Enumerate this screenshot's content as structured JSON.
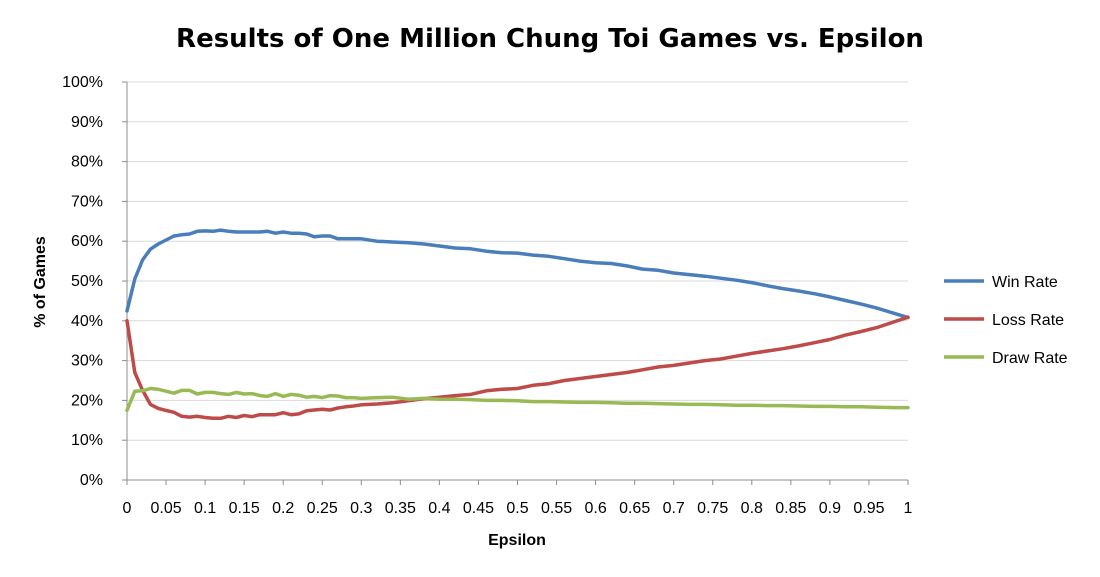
{
  "chart_data": {
    "type": "line",
    "title": "Results of One Million Chung Toi Games vs. Epsilon",
    "xlabel": "Epsilon",
    "ylabel": "% of Games",
    "xlim": [
      0,
      1
    ],
    "ylim": [
      0,
      100
    ],
    "x_ticks": [
      "0",
      "0.05",
      "0.1",
      "0.15",
      "0.2",
      "0.25",
      "0.3",
      "0.35",
      "0.4",
      "0.45",
      "0.5",
      "0.55",
      "0.6",
      "0.65",
      "0.7",
      "0.75",
      "0.8",
      "0.85",
      "0.9",
      "0.95",
      "1"
    ],
    "y_ticks": [
      "0%",
      "10%",
      "20%",
      "30%",
      "40%",
      "50%",
      "60%",
      "70%",
      "80%",
      "90%",
      "100%"
    ],
    "grid": "horizontal",
    "legend_position": "right",
    "series": [
      {
        "name": "Win Rate",
        "color": "#4a7ebb",
        "x": [
          0.0,
          0.01,
          0.02,
          0.03,
          0.04,
          0.05,
          0.06,
          0.07,
          0.08,
          0.09,
          0.1,
          0.11,
          0.12,
          0.13,
          0.14,
          0.15,
          0.16,
          0.17,
          0.18,
          0.19,
          0.2,
          0.21,
          0.22,
          0.23,
          0.24,
          0.25,
          0.26,
          0.27,
          0.28,
          0.29,
          0.3,
          0.32,
          0.34,
          0.36,
          0.38,
          0.4,
          0.42,
          0.44,
          0.46,
          0.48,
          0.5,
          0.52,
          0.54,
          0.56,
          0.58,
          0.6,
          0.62,
          0.64,
          0.66,
          0.68,
          0.7,
          0.72,
          0.74,
          0.76,
          0.78,
          0.8,
          0.82,
          0.84,
          0.86,
          0.88,
          0.9,
          0.92,
          0.94,
          0.96,
          0.98,
          1.0
        ],
        "values": [
          42.5,
          50.5,
          55.3,
          58.0,
          59.3,
          60.3,
          61.3,
          61.6,
          61.8,
          62.5,
          62.6,
          62.5,
          62.8,
          62.5,
          62.3,
          62.3,
          62.3,
          62.3,
          62.5,
          62.0,
          62.3,
          62.0,
          62.0,
          61.8,
          61.1,
          61.3,
          61.3,
          60.6,
          60.6,
          60.6,
          60.6,
          60.0,
          59.8,
          59.6,
          59.3,
          58.8,
          58.3,
          58.1,
          57.5,
          57.1,
          57.0,
          56.5,
          56.2,
          55.6,
          55.0,
          54.6,
          54.4,
          53.8,
          53.0,
          52.7,
          52.0,
          51.6,
          51.2,
          50.7,
          50.2,
          49.6,
          48.8,
          48.1,
          47.5,
          46.8,
          46.0,
          45.1,
          44.2,
          43.2,
          42.0,
          40.8
        ]
      },
      {
        "name": "Loss Rate",
        "color": "#be4b48",
        "x": [
          0.0,
          0.01,
          0.02,
          0.03,
          0.04,
          0.05,
          0.06,
          0.07,
          0.08,
          0.09,
          0.1,
          0.11,
          0.12,
          0.13,
          0.14,
          0.15,
          0.16,
          0.17,
          0.18,
          0.19,
          0.2,
          0.21,
          0.22,
          0.23,
          0.24,
          0.25,
          0.26,
          0.27,
          0.28,
          0.29,
          0.3,
          0.32,
          0.34,
          0.36,
          0.38,
          0.4,
          0.42,
          0.44,
          0.46,
          0.48,
          0.5,
          0.52,
          0.54,
          0.56,
          0.58,
          0.6,
          0.62,
          0.64,
          0.66,
          0.68,
          0.7,
          0.72,
          0.74,
          0.76,
          0.78,
          0.8,
          0.82,
          0.84,
          0.86,
          0.88,
          0.9,
          0.92,
          0.94,
          0.96,
          0.98,
          1.0
        ],
        "values": [
          40.0,
          27.0,
          22.5,
          19.0,
          18.0,
          17.5,
          17.0,
          16.0,
          15.8,
          16.0,
          15.7,
          15.5,
          15.5,
          16.0,
          15.7,
          16.2,
          15.9,
          16.4,
          16.4,
          16.4,
          16.9,
          16.4,
          16.6,
          17.4,
          17.6,
          17.8,
          17.6,
          18.1,
          18.4,
          18.6,
          18.9,
          19.1,
          19.4,
          19.9,
          20.4,
          20.8,
          21.2,
          21.5,
          22.4,
          22.8,
          23.0,
          23.8,
          24.2,
          25.0,
          25.5,
          26.0,
          26.5,
          27.0,
          27.7,
          28.4,
          28.8,
          29.4,
          30.0,
          30.4,
          31.1,
          31.8,
          32.4,
          33.0,
          33.7,
          34.5,
          35.3,
          36.4,
          37.3,
          38.3,
          39.6,
          40.9
        ]
      },
      {
        "name": "Draw Rate",
        "color": "#98b954",
        "x": [
          0.0,
          0.01,
          0.02,
          0.03,
          0.04,
          0.05,
          0.06,
          0.07,
          0.08,
          0.09,
          0.1,
          0.11,
          0.12,
          0.13,
          0.14,
          0.15,
          0.16,
          0.17,
          0.18,
          0.19,
          0.2,
          0.21,
          0.22,
          0.23,
          0.24,
          0.25,
          0.26,
          0.27,
          0.28,
          0.29,
          0.3,
          0.32,
          0.34,
          0.36,
          0.38,
          0.4,
          0.42,
          0.44,
          0.46,
          0.48,
          0.5,
          0.52,
          0.54,
          0.56,
          0.58,
          0.6,
          0.62,
          0.64,
          0.66,
          0.68,
          0.7,
          0.72,
          0.74,
          0.76,
          0.78,
          0.8,
          0.82,
          0.84,
          0.86,
          0.88,
          0.9,
          0.92,
          0.94,
          0.96,
          0.98,
          1.0
        ],
        "values": [
          17.5,
          22.3,
          22.4,
          23.0,
          22.8,
          22.3,
          21.8,
          22.5,
          22.5,
          21.6,
          22.0,
          22.0,
          21.7,
          21.5,
          22.0,
          21.6,
          21.7,
          21.2,
          21.0,
          21.7,
          21.0,
          21.5,
          21.3,
          20.8,
          21.0,
          20.7,
          21.2,
          21.1,
          20.7,
          20.7,
          20.5,
          20.7,
          20.8,
          20.3,
          20.5,
          20.3,
          20.3,
          20.2,
          20.0,
          20.0,
          19.9,
          19.7,
          19.7,
          19.6,
          19.5,
          19.5,
          19.4,
          19.3,
          19.3,
          19.2,
          19.1,
          19.0,
          19.0,
          18.9,
          18.8,
          18.8,
          18.7,
          18.7,
          18.6,
          18.5,
          18.5,
          18.4,
          18.4,
          18.3,
          18.2,
          18.2
        ]
      }
    ]
  }
}
